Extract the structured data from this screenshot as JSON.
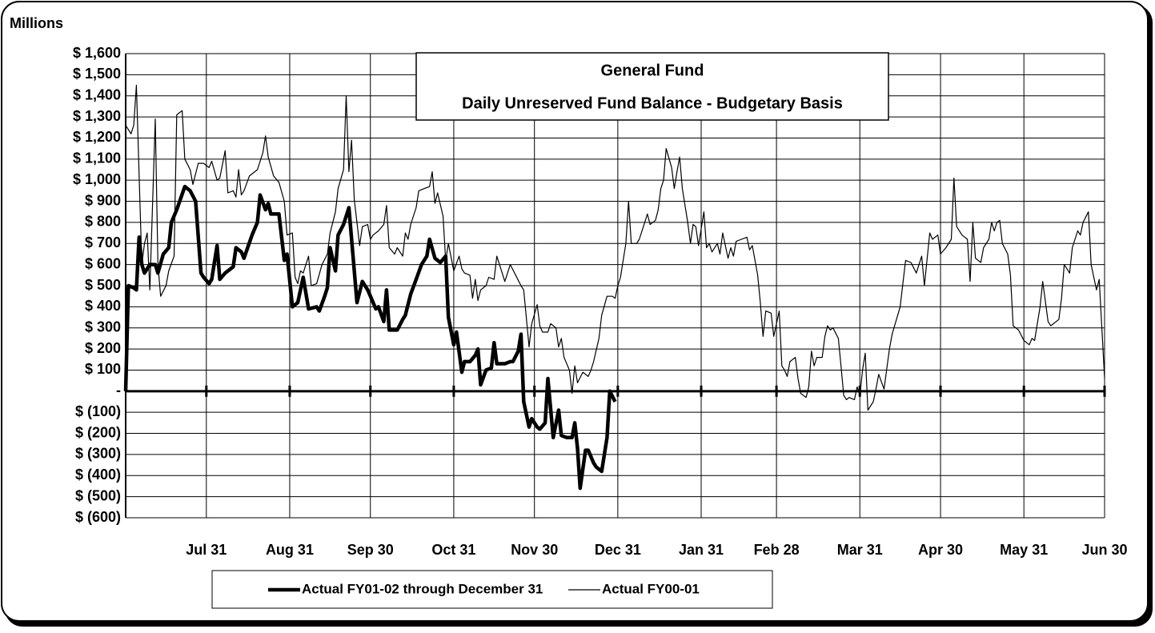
{
  "chart_data": {
    "type": "line",
    "title": "General Fund",
    "subtitle": "Daily Unreserved Fund Balance - Budgetary Basis",
    "ylabel": "Millions",
    "xlim": [
      0,
      364
    ],
    "ylim": [
      -600,
      1600
    ],
    "grid": true,
    "legend": "bottom",
    "xticks": [
      {
        "value": 30,
        "label": "Jul 31"
      },
      {
        "value": 61,
        "label": "Aug 31"
      },
      {
        "value": 91,
        "label": "Sep 30"
      },
      {
        "value": 122,
        "label": "Oct 31"
      },
      {
        "value": 152,
        "label": "Nov 30"
      },
      {
        "value": 183,
        "label": "Dec 31"
      },
      {
        "value": 214,
        "label": "Jan 31"
      },
      {
        "value": 242,
        "label": "Feb 28"
      },
      {
        "value": 273,
        "label": "Mar 31"
      },
      {
        "value": 303,
        "label": "Apr 30"
      },
      {
        "value": 334,
        "label": "May 31"
      },
      {
        "value": 364,
        "label": "Jun 30"
      }
    ],
    "yticks": [
      {
        "value": -600,
        "label": "$ (600)"
      },
      {
        "value": -500,
        "label": "$ (500)"
      },
      {
        "value": -400,
        "label": "$ (400)"
      },
      {
        "value": -300,
        "label": "$ (300)"
      },
      {
        "value": -200,
        "label": "$ (200)"
      },
      {
        "value": -100,
        "label": "$ (100)"
      },
      {
        "value": 0,
        "label": "-"
      },
      {
        "value": 100,
        "label": "$ 100"
      },
      {
        "value": 200,
        "label": "$ 200"
      },
      {
        "value": 300,
        "label": "$ 300"
      },
      {
        "value": 400,
        "label": "$ 400"
      },
      {
        "value": 500,
        "label": "$ 500"
      },
      {
        "value": 600,
        "label": "$ 600"
      },
      {
        "value": 700,
        "label": "$ 700"
      },
      {
        "value": 800,
        "label": "$ 800"
      },
      {
        "value": 900,
        "label": "$ 900"
      },
      {
        "value": 1000,
        "label": "$ 1,000"
      },
      {
        "value": 1100,
        "label": "$ 1,100"
      },
      {
        "value": 1200,
        "label": "$ 1,200"
      },
      {
        "value": 1300,
        "label": "$ 1,300"
      },
      {
        "value": 1400,
        "label": "$ 1,400"
      },
      {
        "value": 1500,
        "label": "$ 1,500"
      },
      {
        "value": 1600,
        "label": "$ 1,600"
      }
    ],
    "series": [
      {
        "name": "Actual FY01-02 through December 31",
        "color": "#000000",
        "x": [
          0,
          1,
          3,
          4,
          5,
          6,
          7,
          9,
          11,
          12,
          14,
          16,
          17,
          19,
          22,
          24,
          26,
          28,
          29,
          31,
          32,
          34,
          35,
          37,
          40,
          41,
          43,
          44,
          47,
          49,
          50,
          52,
          53,
          54,
          57,
          59,
          60,
          62,
          64,
          66,
          68,
          71,
          72,
          74,
          75,
          76,
          78,
          79,
          81,
          83,
          86,
          88,
          90,
          91,
          93,
          94,
          96,
          97,
          98,
          101,
          103,
          104,
          106,
          108,
          110,
          112,
          113,
          115,
          117,
          119,
          120,
          122,
          123,
          125,
          126,
          128,
          130,
          131,
          132,
          134,
          136,
          137,
          138,
          141,
          143,
          144,
          146,
          147,
          148,
          150,
          151,
          153,
          154,
          156,
          157,
          159,
          161,
          162,
          164,
          166,
          167,
          168,
          169,
          171,
          172,
          174,
          175,
          177,
          179,
          180,
          182
        ],
        "values": [
          0,
          500,
          490,
          480,
          730,
          600,
          560,
          600,
          600,
          560,
          650,
          680,
          800,
          860,
          970,
          950,
          900,
          560,
          540,
          510,
          530,
          690,
          530,
          560,
          590,
          680,
          660,
          630,
          740,
          800,
          930,
          860,
          890,
          840,
          840,
          620,
          650,
          400,
          420,
          540,
          390,
          400,
          380,
          450,
          490,
          680,
          570,
          740,
          790,
          870,
          420,
          520,
          480,
          450,
          390,
          400,
          330,
          480,
          290,
          290,
          340,
          360,
          460,
          530,
          600,
          640,
          720,
          630,
          610,
          640,
          350,
          220,
          280,
          90,
          140,
          140,
          170,
          200,
          30,
          100,
          110,
          230,
          130,
          130,
          140,
          140,
          190,
          270,
          -50,
          -170,
          -130,
          -170,
          -180,
          -150,
          60,
          -220,
          -90,
          -210,
          -220,
          -220,
          -150,
          -270,
          -460,
          -280,
          -280,
          -340,
          -360,
          -380,
          -220,
          0,
          -50
        ]
      },
      {
        "name": "Actual FY00-01",
        "color": "#000000",
        "x": [
          0,
          2,
          3,
          4,
          6,
          7,
          8,
          9,
          11,
          12,
          13,
          15,
          16,
          18,
          19,
          21,
          22,
          24,
          25,
          27,
          29,
          31,
          32,
          34,
          35,
          37,
          38,
          40,
          41,
          42,
          43,
          44,
          46,
          48,
          49,
          51,
          52,
          53,
          55,
          57,
          59,
          60,
          62,
          63,
          64,
          65,
          66,
          68,
          69,
          71,
          73,
          75,
          76,
          78,
          79,
          81,
          82,
          83,
          84,
          85,
          87,
          88,
          90,
          91,
          92,
          94,
          96,
          97,
          98,
          100,
          101,
          103,
          104,
          105,
          106,
          108,
          109,
          111,
          113,
          114,
          115,
          116,
          118,
          119,
          120,
          122,
          124,
          125,
          126,
          128,
          129,
          130,
          131,
          132,
          134,
          135,
          137,
          138,
          140,
          141,
          143,
          145,
          147,
          148,
          150,
          151,
          153,
          154,
          155,
          157,
          158,
          160,
          161,
          162,
          163,
          165,
          166,
          167,
          168,
          170,
          172,
          173,
          174,
          176,
          177,
          179,
          181,
          182,
          183,
          184,
          186,
          187,
          188,
          190,
          191,
          193,
          194,
          195,
          197,
          198,
          199,
          200,
          201,
          203,
          204,
          205,
          206,
          207,
          209,
          210,
          211,
          212,
          213,
          215,
          216,
          217,
          218,
          220,
          221,
          222,
          224,
          225,
          226,
          227,
          229,
          231,
          232,
          233,
          235,
          236,
          237,
          238,
          240,
          241,
          243,
          244,
          245,
          246,
          247,
          249,
          250,
          251,
          253,
          254,
          255,
          256,
          257,
          259,
          260,
          261,
          262,
          263,
          265,
          266,
          267,
          268,
          269,
          271,
          272,
          273,
          274,
          275,
          276,
          278,
          279,
          280,
          282,
          284,
          285,
          288,
          290,
          292,
          294,
          296,
          297,
          299,
          300,
          302,
          303,
          305,
          307,
          308,
          309,
          311,
          313,
          314,
          315,
          316,
          318,
          319,
          321,
          322,
          323,
          324,
          325,
          326,
          328,
          329,
          330,
          331,
          332,
          334,
          336,
          337,
          338,
          340,
          341,
          343,
          344,
          346,
          347,
          348,
          349,
          351,
          352,
          354,
          355,
          356,
          358,
          359,
          361,
          362,
          364
        ],
        "values": [
          1260,
          1220,
          1260,
          1450,
          600,
          700,
          750,
          480,
          1290,
          600,
          450,
          500,
          570,
          640,
          1310,
          1330,
          1100,
          1050,
          980,
          1080,
          1080,
          1060,
          1090,
          1000,
          1010,
          1140,
          940,
          950,
          920,
          1050,
          930,
          950,
          1020,
          1040,
          1050,
          1130,
          1210,
          1110,
          1020,
          990,
          900,
          740,
          750,
          540,
          510,
          570,
          560,
          640,
          500,
          510,
          600,
          650,
          750,
          850,
          960,
          1050,
          1400,
          1040,
          1190,
          910,
          690,
          780,
          790,
          720,
          740,
          760,
          790,
          880,
          680,
          650,
          680,
          640,
          750,
          720,
          790,
          870,
          950,
          960,
          970,
          1040,
          890,
          940,
          830,
          620,
          700,
          570,
          640,
          580,
          560,
          550,
          440,
          530,
          430,
          480,
          500,
          540,
          530,
          640,
          560,
          520,
          600,
          550,
          500,
          480,
          210,
          320,
          410,
          310,
          280,
          280,
          320,
          300,
          210,
          250,
          160,
          100,
          -10,
          120,
          40,
          90,
          70,
          100,
          140,
          250,
          360,
          450,
          450,
          440,
          500,
          540,
          700,
          900,
          700,
          700,
          720,
          800,
          840,
          790,
          810,
          860,
          960,
          1000,
          1150,
          1060,
          960,
          1040,
          1110,
          960,
          800,
          700,
          790,
          780,
          690,
          850,
          680,
          700,
          660,
          700,
          650,
          750,
          630,
          680,
          640,
          710,
          720,
          730,
          670,
          690,
          550,
          420,
          260,
          380,
          370,
          260,
          380,
          120,
          100,
          70,
          140,
          160,
          60,
          -10,
          -30,
          20,
          190,
          120,
          160,
          160,
          260,
          310,
          290,
          300,
          250,
          120,
          -20,
          -40,
          -30,
          -40,
          20,
          -20,
          100,
          180,
          -90,
          -50,
          10,
          80,
          10,
          200,
          270,
          400,
          620,
          610,
          560,
          640,
          500,
          750,
          720,
          740,
          650,
          680,
          720,
          1010,
          780,
          740,
          720,
          520,
          800,
          630,
          610,
          680,
          720,
          800,
          760,
          800,
          810,
          700,
          650,
          550,
          310,
          300,
          290,
          240,
          220,
          250,
          240,
          400,
          520,
          330,
          310,
          330,
          340,
          440,
          600,
          560,
          680,
          760,
          740,
          800,
          850,
          600,
          480,
          530,
          60
        ]
      }
    ]
  }
}
